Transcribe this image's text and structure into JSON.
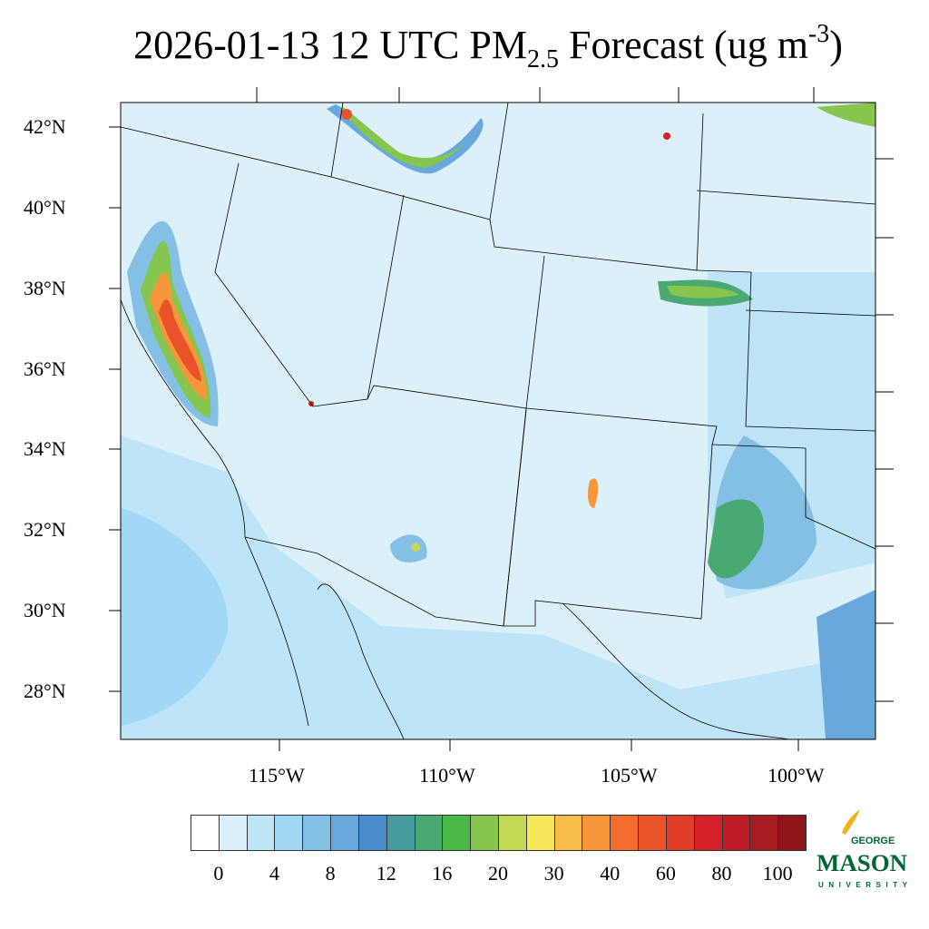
{
  "title": {
    "pre": "2026-01-13 12 UTC PM",
    "sub": "2.5",
    "mid": " Forecast (ug m",
    "sup": "-3",
    "post": ")"
  },
  "lat_labels": [
    "42°N",
    "40°N",
    "38°N",
    "36°N",
    "34°N",
    "32°N",
    "30°N",
    "28°N"
  ],
  "lon_labels": [
    "115°W",
    "110°W",
    "105°W",
    "100°W"
  ],
  "colorbar": {
    "colors": [
      "#ffffff",
      "#dcf0fa",
      "#bde4f7",
      "#a0d8f5",
      "#84bfe6",
      "#69a8dc",
      "#4a8ccb",
      "#489c9e",
      "#4aa872",
      "#4ab846",
      "#86c54e",
      "#c4d856",
      "#f7e659",
      "#f8bd4a",
      "#f7963a",
      "#f56d2c",
      "#e9532a",
      "#df3d27",
      "#d42028",
      "#bd1c24",
      "#a81c21",
      "#8e1619"
    ],
    "levels": [
      0,
      2,
      4,
      6,
      8,
      10,
      12,
      14,
      16,
      18,
      20,
      25,
      30,
      35,
      40,
      50,
      60,
      70,
      80,
      90,
      100
    ],
    "labels": [
      "0",
      "4",
      "8",
      "12",
      "16",
      "20",
      "30",
      "40",
      "60",
      "80",
      "100"
    ]
  },
  "logo": {
    "line1": "GEORGE",
    "line2": "MASON",
    "line3": "UNIVERSITY",
    "color": "#006633",
    "accent": "#f2b01e"
  }
}
